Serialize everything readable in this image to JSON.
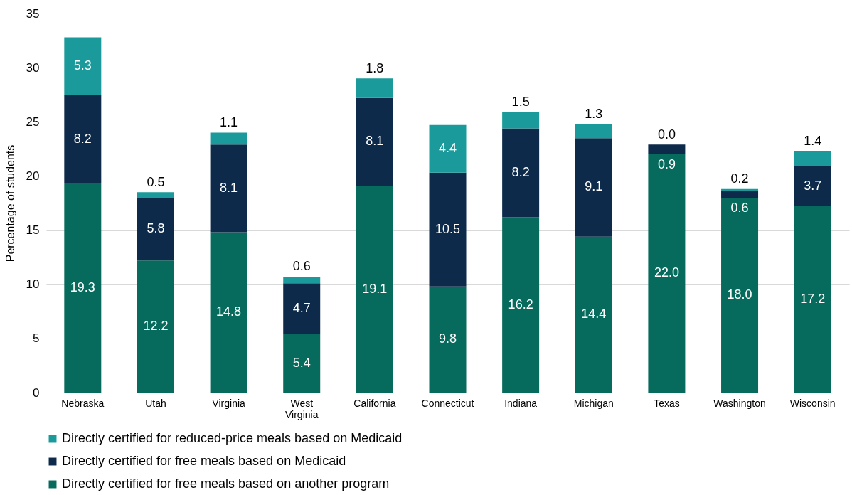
{
  "chart_data": {
    "type": "bar",
    "stacked": true,
    "ylabel": "Percentage of students",
    "categories": [
      "Nebraska",
      "Utah",
      "Virginia",
      "West Virginia",
      "California",
      "Connecticut",
      "Indiana",
      "Michigan",
      "Texas",
      "Washington",
      "Wisconsin"
    ],
    "series": [
      {
        "name": "Directly certified for free meals based on another program",
        "color": "#066b5c",
        "values": [
          19.3,
          12.2,
          14.8,
          5.4,
          19.1,
          9.8,
          16.2,
          14.4,
          22.0,
          18.0,
          17.2
        ],
        "value_labels": [
          "19.3",
          "12.2",
          "14.8",
          "5.4",
          "19.1",
          "9.8",
          "16.2",
          "14.4",
          "22.0",
          "18.0",
          "17.2"
        ]
      },
      {
        "name": "Directly certified for free meals based on Medicaid",
        "color": "#0d2a4a",
        "values": [
          8.2,
          5.8,
          8.1,
          4.7,
          8.1,
          10.5,
          8.2,
          9.1,
          0.9,
          0.6,
          3.7
        ],
        "value_labels": [
          "8.2",
          "5.8",
          "8.1",
          "4.7",
          "8.1",
          "10.5",
          "8.2",
          "9.1",
          "0.9",
          "0.6",
          "3.7"
        ]
      },
      {
        "name": "Directly certified for reduced-price meals based on Medicaid",
        "color": "#1a9a9a",
        "values": [
          5.3,
          0.5,
          1.1,
          0.6,
          1.8,
          4.4,
          1.5,
          1.3,
          0.0,
          0.2,
          1.4
        ],
        "value_labels": [
          "5.3",
          "0.5",
          "1.1",
          "0.6",
          "1.8",
          "4.4",
          "1.5",
          "1.3",
          "0.0",
          "0.2",
          "1.4"
        ]
      }
    ],
    "ylim": [
      0,
      35
    ],
    "yticks": [
      0,
      5,
      10,
      15,
      20,
      25,
      30,
      35
    ],
    "grid": "y",
    "legend": "bottom"
  }
}
